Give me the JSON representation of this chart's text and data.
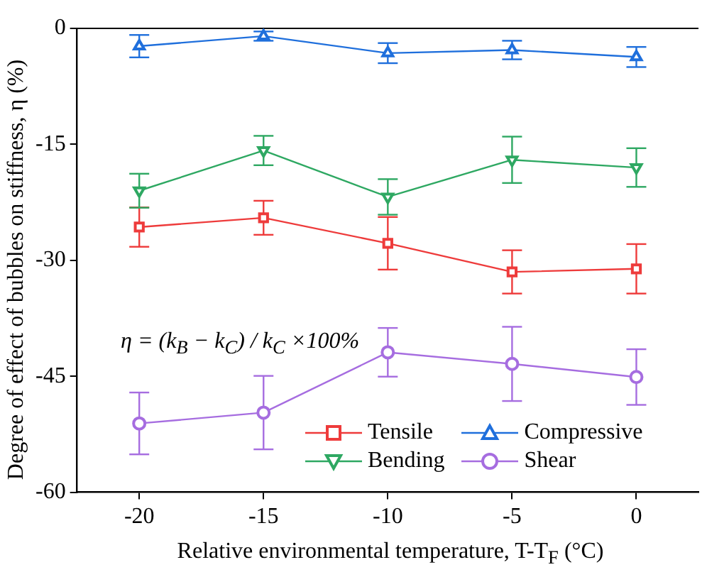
{
  "chart_data": {
    "type": "line",
    "xlabel": "Relative environmental temperature, T-T$_{F}$ (°C)",
    "ylabel": "Degree of effect of bubbles on stiffness, η (%)",
    "x": [
      -20,
      -15,
      -10,
      -5,
      0
    ],
    "series": [
      {
        "name": "Tensile",
        "color": "#ee3b3b",
        "marker": "square",
        "values": [
          -25.7,
          -24.5,
          -27.8,
          -31.5,
          -31.1
        ],
        "errors": [
          2.55,
          2.2,
          3.4,
          2.8,
          3.2
        ]
      },
      {
        "name": "Compressive",
        "color": "#1f6fdc",
        "marker": "triangle",
        "values": [
          -2.3,
          -1.0,
          -3.2,
          -2.8,
          -3.7
        ],
        "errors": [
          1.45,
          0.6,
          1.3,
          1.2,
          1.3
        ]
      },
      {
        "name": "Bending",
        "color": "#2ea862",
        "marker": "triangle-down",
        "values": [
          -21.0,
          -15.8,
          -21.8,
          -17.0,
          -18.0
        ],
        "errors": [
          2.2,
          1.9,
          2.3,
          3.0,
          2.5
        ]
      },
      {
        "name": "Shear",
        "color": "#a66de0",
        "marker": "circle",
        "values": [
          -51.1,
          -49.7,
          -41.9,
          -43.4,
          -45.1
        ],
        "errors": [
          4.0,
          4.75,
          3.15,
          4.8,
          3.6
        ]
      }
    ],
    "xlim": [
      -22.5,
      2.5
    ],
    "xticks": [
      -20,
      -15,
      -10,
      -5,
      0
    ],
    "ylim": [
      -60,
      0
    ],
    "yticks": [
      -60,
      -45,
      -30,
      -15,
      0
    ],
    "grid": false,
    "legend": "bottom right",
    "line_style": "solid",
    "annotations": [
      "η = (k$_{B}$ − k$_{C}$) / k$_{C}$ ×100%"
    ]
  }
}
